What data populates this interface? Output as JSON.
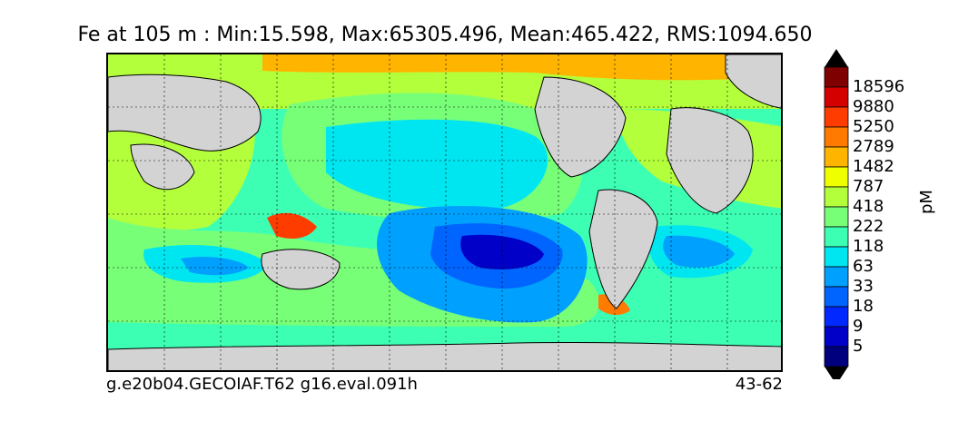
{
  "title": "Fe at 105 m : Min:15.598, Max:65305.496, Mean:465.422, RMS:1094.650",
  "footer": {
    "left": "g.e20b04.GECOIAF.T62 g16.eval.091h",
    "right": "43-62"
  },
  "colorbar": {
    "unit": "pM",
    "labels": [
      "18596",
      "9880",
      "5250",
      "2789",
      "1482",
      "787",
      "418",
      "222",
      "118",
      "63",
      "33",
      "18",
      "9",
      "5"
    ],
    "colors": [
      "#7f0000",
      "#d40000",
      "#ff3c00",
      "#ff7a00",
      "#ffb400",
      "#f0ff00",
      "#b4ff3c",
      "#78ff78",
      "#3cffb4",
      "#00e6f0",
      "#00a0ff",
      "#0064ff",
      "#0028ff",
      "#0000c8",
      "#00007f"
    ],
    "extend_colors": {
      "top": "#000000",
      "bottom": "#000000"
    }
  },
  "chart_data": {
    "type": "heatmap",
    "title": "Fe at 105 m : Min:15.598, Max:65305.496, Mean:465.422, RMS:1094.650",
    "variable": "Fe",
    "depth": "105 m",
    "stats": {
      "min": 15.598,
      "max": 65305.496,
      "mean": 465.422,
      "rms": 1094.65
    },
    "levels": [
      5,
      9,
      18,
      33,
      63,
      118,
      222,
      418,
      787,
      1482,
      2789,
      5250,
      9880,
      18596
    ],
    "unit": "pM",
    "land_color": "#d3d3d3",
    "grid": true
  }
}
